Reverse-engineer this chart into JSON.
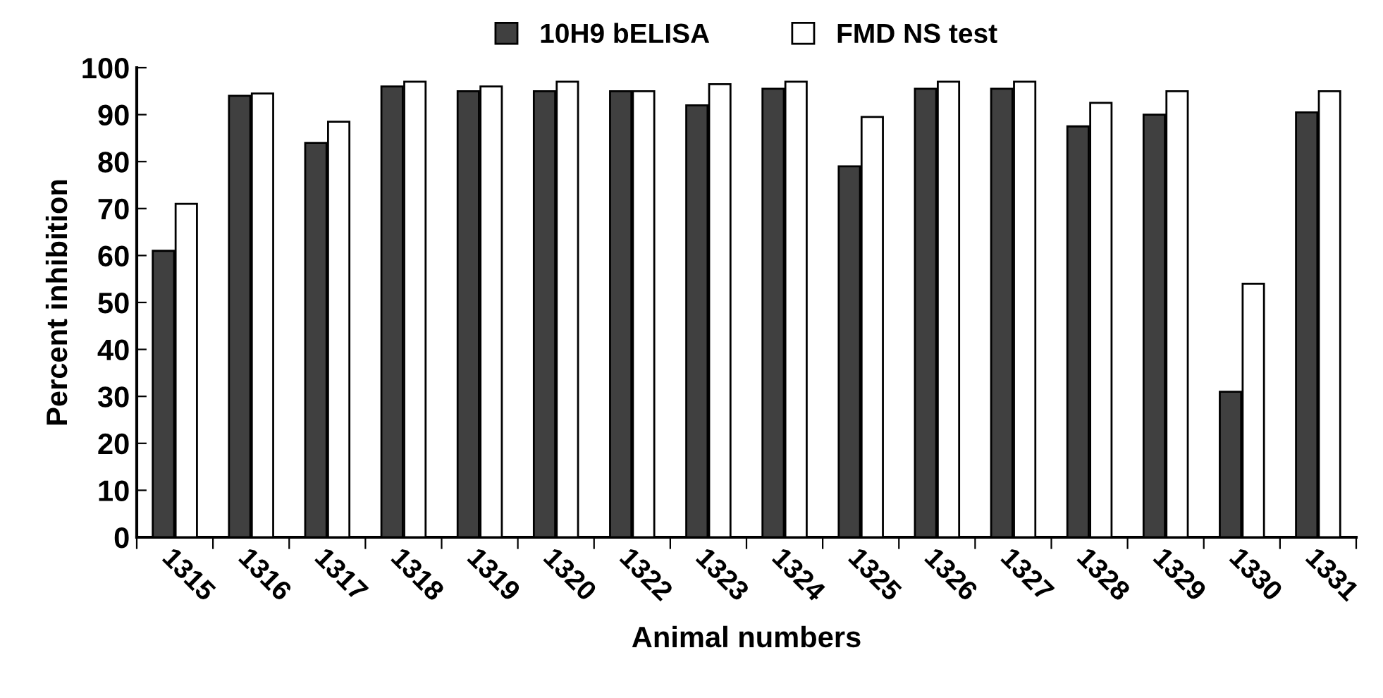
{
  "chart_data": {
    "type": "bar",
    "xlabel": "Animal numbers",
    "ylabel": "Percent inhibition",
    "categories": [
      "1315",
      "1316",
      "1317",
      "1318",
      "1319",
      "1320",
      "1322",
      "1323",
      "1324",
      "1325",
      "1326",
      "1327",
      "1328",
      "1329",
      "1330",
      "1331"
    ],
    "series": [
      {
        "name": "10H9 bELISA",
        "color": "#404040",
        "values": [
          61,
          94,
          84,
          96,
          95,
          95,
          95,
          92,
          95.5,
          79,
          95.5,
          95.5,
          87.5,
          90,
          31,
          90.5
        ]
      },
      {
        "name": "FMD NS test",
        "color": "#ffffff",
        "values": [
          71,
          94.5,
          88.5,
          97,
          96,
          97,
          95,
          96.5,
          97,
          89.5,
          97,
          97,
          92.5,
          95,
          54,
          95
        ]
      }
    ],
    "ylim": [
      0,
      100
    ],
    "yticks": [
      0,
      10,
      20,
      30,
      40,
      50,
      60,
      70,
      80,
      90,
      100
    ],
    "grid": false,
    "legend": "top"
  }
}
